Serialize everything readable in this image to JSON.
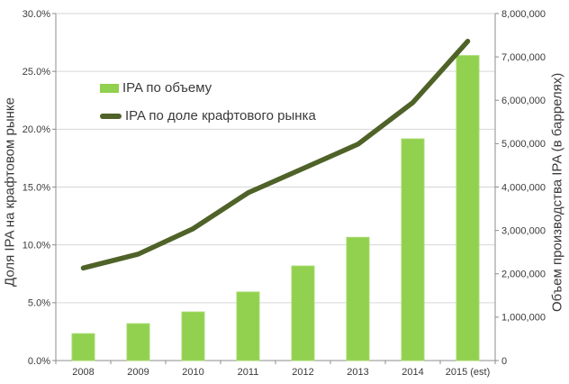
{
  "chart_data": {
    "type": "bar+line combo",
    "categories": [
      "2008",
      "2009",
      "2010",
      "2011",
      "2012",
      "2013",
      "2014",
      "2015 (est)"
    ],
    "series": [
      {
        "name": "IPA по объему",
        "type": "bar",
        "axis": "right",
        "color": "#92d050",
        "values": [
          620000,
          850000,
          1120000,
          1580000,
          2180000,
          2840000,
          5110000,
          7030000
        ]
      },
      {
        "name": "IPA по доле крафтового рынка",
        "type": "line",
        "axis": "left",
        "color": "#4f6228",
        "values": [
          8.0,
          9.2,
          11.4,
          14.5,
          16.6,
          18.7,
          22.3,
          27.6
        ]
      }
    ],
    "left_axis": {
      "title": "Доля IPA на крафтовом рынке",
      "min": 0,
      "max": 30,
      "step": 5,
      "format": "percent1",
      "tick_labels": [
        "0.0%",
        "5.0%",
        "10.0%",
        "15.0%",
        "20.0%",
        "25.0%",
        "30.0%"
      ]
    },
    "right_axis": {
      "title": "Объем производства IPA (в баррелях)",
      "min": 0,
      "max": 8000000,
      "step": 1000000,
      "format": "thousands",
      "tick_labels": [
        "0",
        "1,000,000",
        "2,000,000",
        "3,000,000",
        "4,000,000",
        "5,000,000",
        "6,000,000",
        "7,000,000",
        "8,000,000"
      ]
    },
    "grid": true,
    "legend_position": "inside-top-left"
  },
  "legend": {
    "items": [
      {
        "label": "IPA по объему",
        "swatch": "bar"
      },
      {
        "label": "IPA по доле крафтового рынка",
        "swatch": "line"
      }
    ]
  },
  "colors": {
    "bar": "#92d050",
    "bar_edge": "#a5da6c",
    "line": "#4f6228",
    "gridline": "#d6d6d6",
    "axis": "#8c8c8c",
    "text": "#3a3a3a",
    "background": "#ffffff"
  }
}
